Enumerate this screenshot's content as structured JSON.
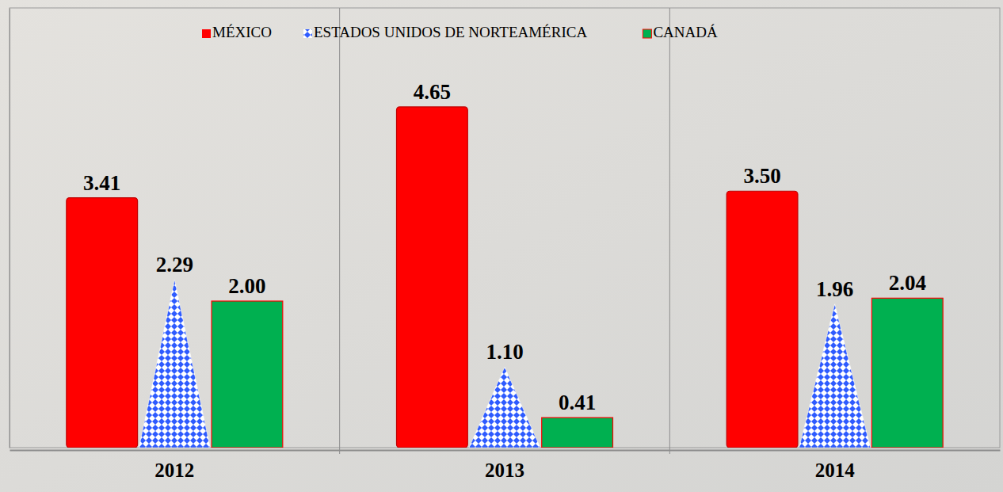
{
  "chart_data": {
    "type": "bar",
    "categories": [
      "2012",
      "2013",
      "2014"
    ],
    "series": [
      {
        "name": "MÉXICO",
        "color": "#ff0000",
        "values": [
          3.41,
          4.65,
          3.5
        ],
        "value_labels": [
          "3.41",
          "4.65",
          "3.50"
        ]
      },
      {
        "name": "ESTADOS UNIDOS DE NORTEAMÉRICA",
        "color": "#2e5bff",
        "marker": "triangle",
        "values": [
          2.29,
          1.1,
          1.96
        ],
        "value_labels": [
          "2.29",
          "1.10",
          "1.96"
        ]
      },
      {
        "name": "CANADÁ",
        "color": "#00b050",
        "values": [
          2,
          0.41,
          2.04
        ],
        "value_labels": [
          "2.00",
          "0.41",
          "2.04"
        ]
      }
    ],
    "ylim": [
      0,
      6
    ],
    "grid": false,
    "legend": "top",
    "data_labels": true,
    "tick_labels": "x"
  }
}
